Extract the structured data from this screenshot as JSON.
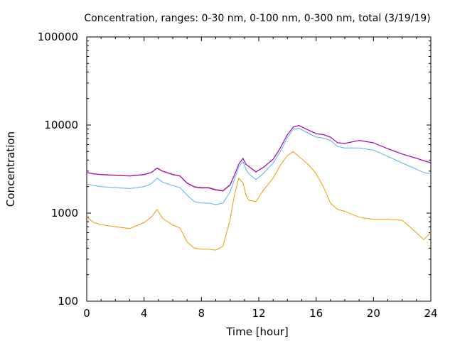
{
  "chart_data": {
    "type": "line",
    "title": "Concentration, ranges: 0-30 nm, 0-100 nm, 0-300 nm, total (3/19/19)",
    "xlabel": "Time [hour]",
    "ylabel": "Concentration",
    "xlim": [
      0,
      24
    ],
    "ylim": [
      100,
      100000
    ],
    "yscale": "log",
    "grid": false,
    "legend": "none",
    "xticks": [
      0,
      4,
      8,
      12,
      16,
      20,
      24
    ],
    "xtick_labels": [
      "0",
      "4",
      "8",
      "12",
      "16",
      "20",
      "24"
    ],
    "yticks": [
      100,
      1000,
      10000,
      100000
    ],
    "ytick_labels": [
      "100",
      "1000",
      "10000",
      "100000"
    ],
    "x": [
      0,
      0.5,
      1,
      2,
      3,
      4,
      4.5,
      4.9,
      5.3,
      6,
      6.5,
      7,
      7.5,
      8,
      8.5,
      9,
      9.5,
      10,
      10.3,
      10.6,
      10.9,
      11.1,
      11.3,
      11.8,
      12.3,
      13,
      13.5,
      14,
      14.4,
      14.8,
      15.5,
      16,
      16.5,
      17,
      17.5,
      18,
      19,
      20,
      21,
      22,
      23,
      23.5,
      24
    ],
    "series": [
      {
        "color": "#e51e10",
        "values": [
          2900,
          2800,
          2750,
          2700,
          2650,
          2750,
          2900,
          3250,
          3000,
          2750,
          2650,
          2200,
          2000,
          1950,
          1950,
          1850,
          1800,
          2100,
          2700,
          3600,
          4200,
          3600,
          3400,
          2950,
          3300,
          4100,
          5500,
          7800,
          9500,
          9900,
          8700,
          8000,
          7800,
          7300,
          6300,
          6200,
          6700,
          6300,
          5400,
          4700,
          4200,
          3950,
          3750
        ]
      },
      {
        "color": "#9400d3",
        "values": [
          2880,
          2780,
          2730,
          2680,
          2630,
          2730,
          2880,
          3230,
          2980,
          2730,
          2630,
          2180,
          1980,
          1930,
          1930,
          1830,
          1780,
          2080,
          2680,
          3580,
          4180,
          3580,
          3380,
          2930,
          3280,
          4080,
          5480,
          7780,
          9480,
          9880,
          8680,
          7980,
          7780,
          7280,
          6280,
          6180,
          6680,
          6280,
          5380,
          4680,
          4180,
          3930,
          3730
        ]
      },
      {
        "color": "#56b4e9",
        "values": [
          2150,
          2050,
          2000,
          1950,
          1900,
          2000,
          2150,
          2500,
          2250,
          2050,
          1950,
          1600,
          1350,
          1300,
          1300,
          1250,
          1300,
          1750,
          2400,
          3350,
          3850,
          3150,
          2800,
          2400,
          2800,
          3700,
          5000,
          7200,
          9000,
          9200,
          8000,
          7300,
          7100,
          6700,
          5700,
          5500,
          5500,
          5200,
          4400,
          3700,
          3150,
          2900,
          2800
        ]
      },
      {
        "color": "#e69f00",
        "values": [
          900,
          780,
          740,
          700,
          670,
          780,
          900,
          1100,
          870,
          730,
          680,
          470,
          400,
          390,
          390,
          380,
          420,
          850,
          1600,
          2500,
          2200,
          1600,
          1400,
          1350,
          1800,
          2500,
          3500,
          4500,
          5000,
          4400,
          3500,
          2800,
          2000,
          1300,
          1100,
          1050,
          900,
          850,
          850,
          830,
          600,
          500,
          600
        ]
      }
    ]
  }
}
